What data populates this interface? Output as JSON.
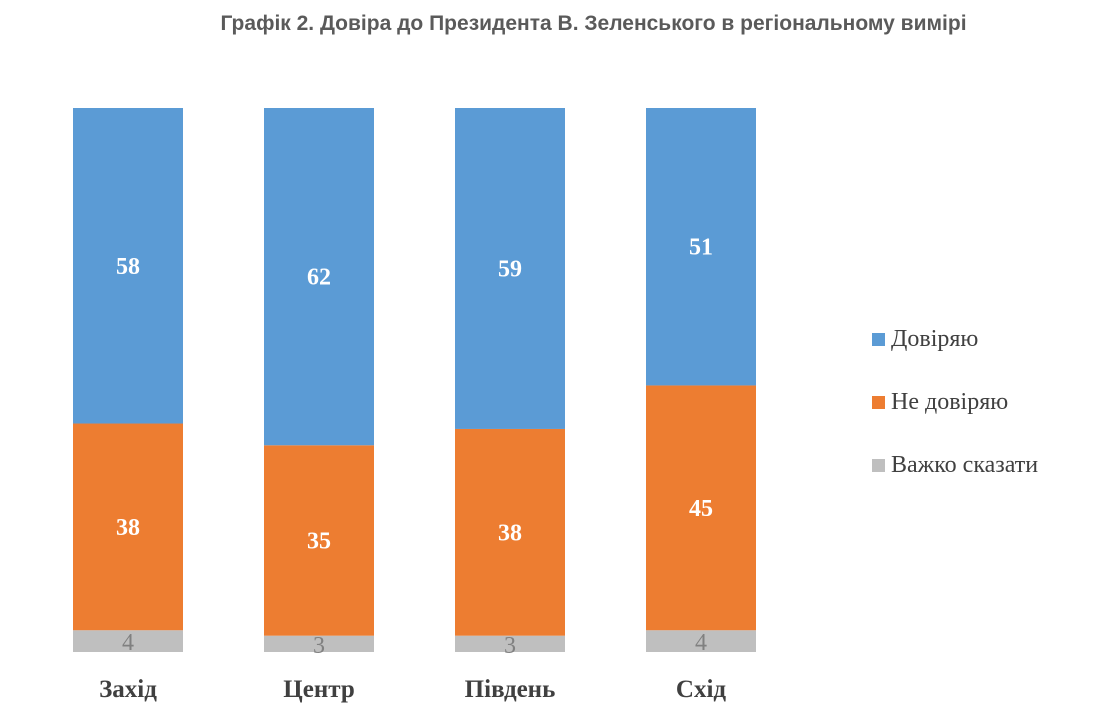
{
  "chart_data": {
    "type": "bar",
    "stacked": true,
    "title": "Графік 2. Довіра до Президента В. Зеленського в регіональному вимірі",
    "categories": [
      "Захід",
      "Центр",
      "Південь",
      "Схід"
    ],
    "series": [
      {
        "name": "Довіряю",
        "values": [
          58,
          62,
          59,
          51
        ],
        "color": "#5b9bd5"
      },
      {
        "name": "Не довіряю",
        "values": [
          38,
          35,
          38,
          45
        ],
        "color": "#ed7d31"
      },
      {
        "name": "Важко сказати",
        "values": [
          4,
          3,
          3,
          4
        ],
        "color": "#bfbfbf"
      }
    ],
    "legend_position": "right"
  }
}
